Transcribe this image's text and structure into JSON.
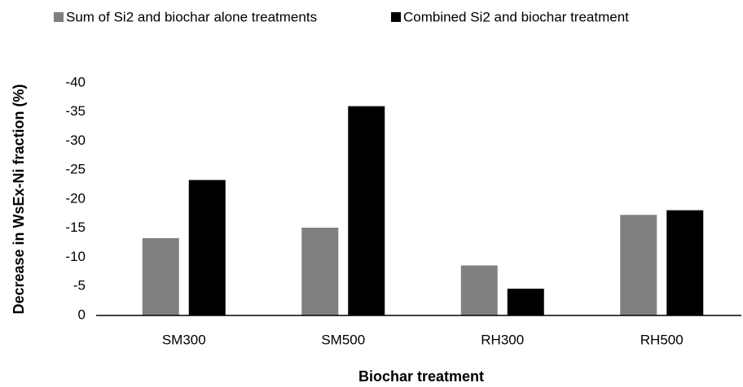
{
  "chart_data": {
    "type": "bar",
    "y_label": "Decrease in WsEx-Ni fraction (%)",
    "x_label": "Biochar treatment",
    "categories": [
      "SM300",
      "SM500",
      "RH300",
      "RH500"
    ],
    "series": [
      {
        "name": "Sum of Si2 and biochar alone treatments",
        "color": "#808080",
        "values": [
          -13.3,
          -15.1,
          -8.6,
          -17.3
        ]
      },
      {
        "name": "Combined Si2 and biochar treatment",
        "color": "#000000",
        "values": [
          -23.3,
          -36,
          -4.6,
          -18.1
        ]
      }
    ],
    "ylim": [
      0,
      -40
    ],
    "yticks": [
      0,
      -5,
      -10,
      -15,
      -20,
      -25,
      -30,
      -35,
      -40
    ],
    "grid": false,
    "legend": "top"
  }
}
